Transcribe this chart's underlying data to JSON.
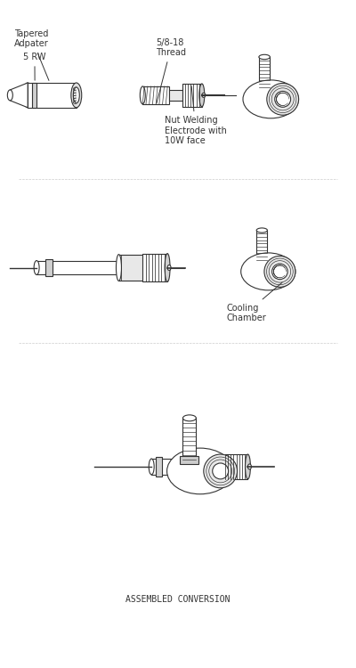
{
  "title": "ASSEMBLED CONVERSION",
  "bg_color": "#ffffff",
  "line_color": "#333333",
  "fill_color": "#f0f0f0",
  "dark_fill": "#cccccc",
  "labels": {
    "rw": "5 RW",
    "thread": "5/8-18\nThread",
    "tapered": "Tapered\nAdpater",
    "nut_welding": "Nut Welding\nElectrode with\n10W face",
    "cooling": "Cooling\nChamber",
    "assembled": "ASSEMBLED CONVERSION"
  },
  "label_fontsize": 7,
  "title_fontsize": 7
}
